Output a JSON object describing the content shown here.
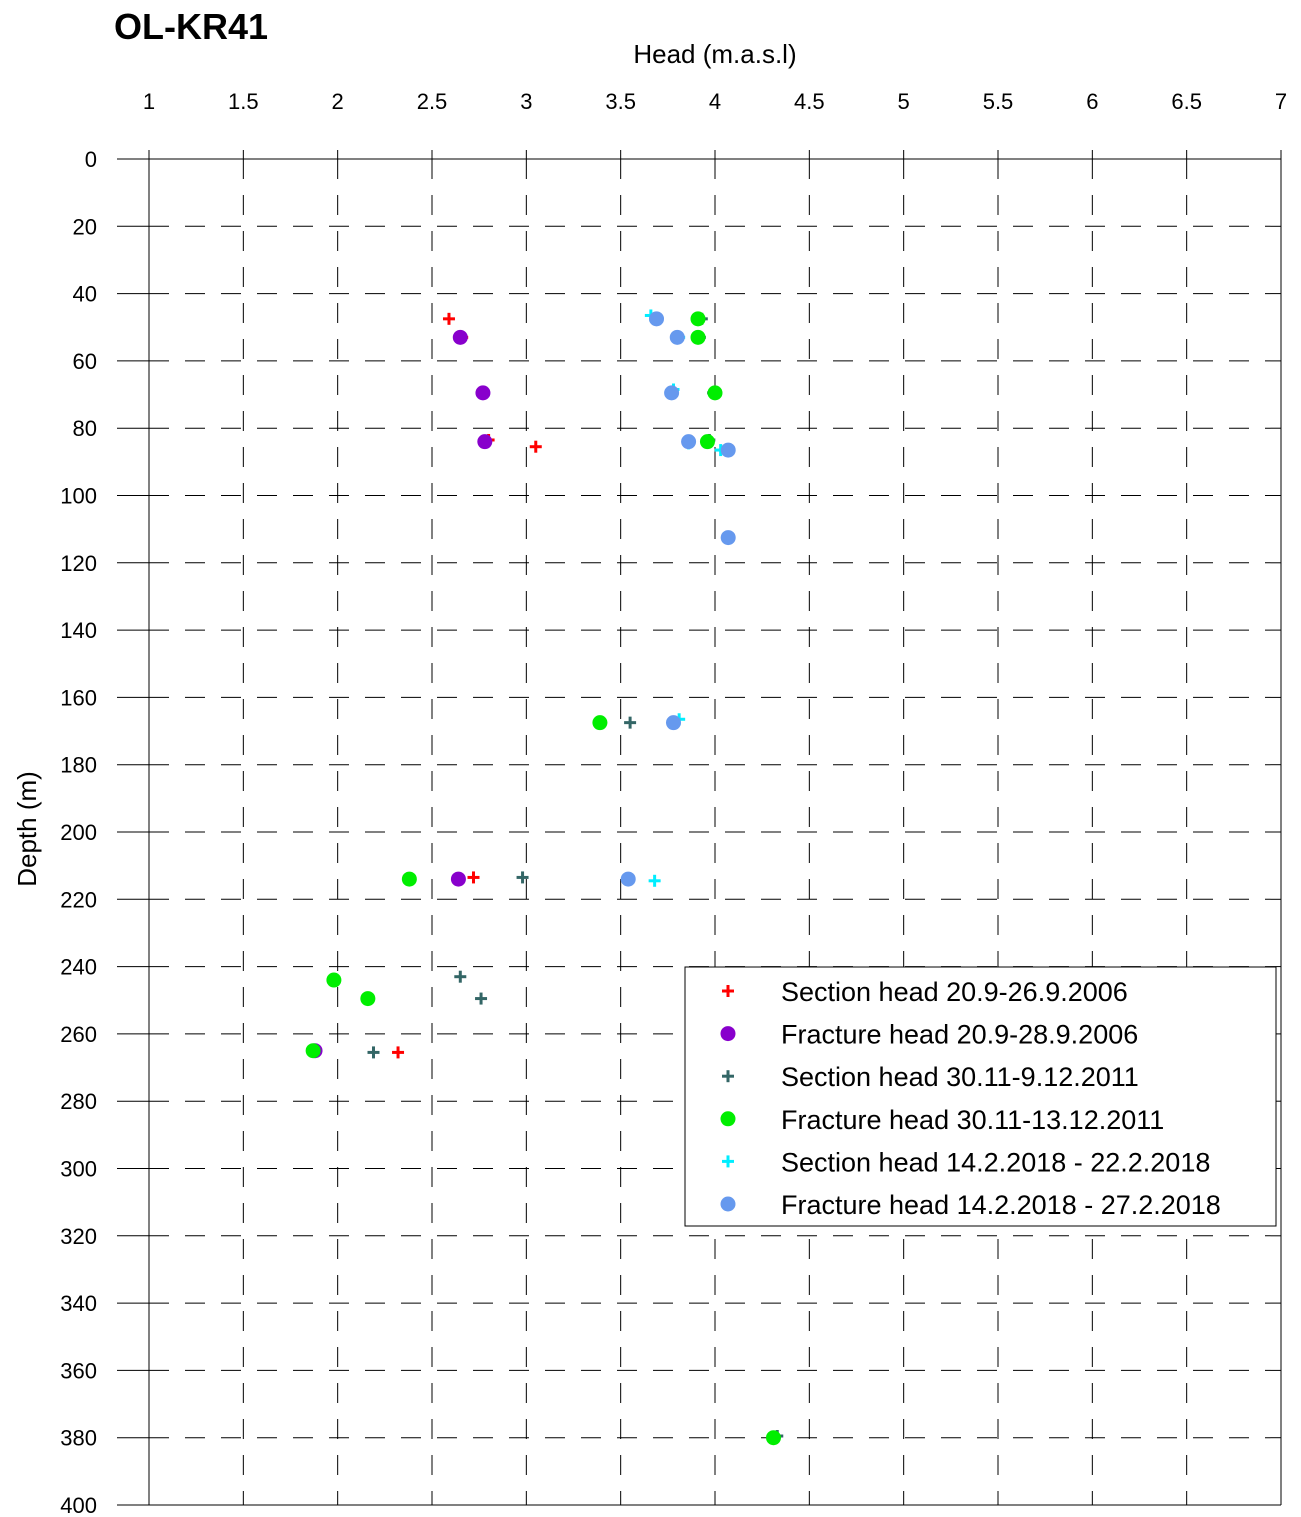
{
  "chart_data": {
    "type": "scatter",
    "title": "OL-KR41",
    "xlabel": "Head (m.a.s.l)",
    "ylabel": "Depth (m)",
    "xlim": [
      1,
      7
    ],
    "ylim": [
      0,
      400
    ],
    "y_inverted": true,
    "x_axis_position": "top",
    "grid": "dashed",
    "x_ticks": [
      "1",
      "1.5",
      "2",
      "2.5",
      "3",
      "3.5",
      "4",
      "4.5",
      "5",
      "5.5",
      "6",
      "6.5",
      "7"
    ],
    "y_ticks": [
      "0",
      "20",
      "40",
      "60",
      "80",
      "100",
      "120",
      "140",
      "160",
      "180",
      "200",
      "220",
      "240",
      "260",
      "280",
      "300",
      "320",
      "340",
      "360",
      "380",
      "400"
    ],
    "legend_position": "right",
    "series": [
      {
        "name": "Section head 20.9-26.9.2006",
        "marker": "plus",
        "color": "#ff0000",
        "points": [
          [
            2.59,
            47.5
          ],
          [
            2.66,
            53
          ],
          [
            2.77,
            69.5
          ],
          [
            2.8,
            83.5
          ],
          [
            3.05,
            85.5
          ],
          [
            2.72,
            213.5
          ],
          [
            2.32,
            265.5
          ]
        ]
      },
      {
        "name": "Fracture head 20.9-28.9.2006",
        "marker": "circle",
        "color": "#8800cc",
        "points": [
          [
            2.65,
            53
          ],
          [
            2.77,
            69.5
          ],
          [
            2.78,
            84
          ],
          [
            2.64,
            214
          ],
          [
            1.88,
            265
          ]
        ]
      },
      {
        "name": "Section head 30.11-9.12.2011",
        "marker": "plus",
        "color": "#336666",
        "points": [
          [
            3.93,
            47.5
          ],
          [
            3.92,
            53
          ],
          [
            3.99,
            69.5
          ],
          [
            3.97,
            83.5
          ],
          [
            3.55,
            167.5
          ],
          [
            2.98,
            213.5
          ],
          [
            2.65,
            243
          ],
          [
            2.76,
            249.5
          ],
          [
            2.19,
            265.5
          ],
          [
            4.33,
            379.5
          ]
        ]
      },
      {
        "name": "Fracture head 30.11-13.12.2011",
        "marker": "circle",
        "color": "#00ee00",
        "points": [
          [
            3.91,
            47.5
          ],
          [
            3.91,
            53
          ],
          [
            4.0,
            69.5
          ],
          [
            3.96,
            84
          ],
          [
            3.39,
            167.5
          ],
          [
            2.38,
            214
          ],
          [
            1.98,
            244
          ],
          [
            2.16,
            249.5
          ],
          [
            1.87,
            265
          ],
          [
            4.31,
            380
          ]
        ]
      },
      {
        "name": "Section head 14.2.2018 - 22.2.2018",
        "marker": "plus",
        "color": "#00eeff",
        "points": [
          [
            3.66,
            46.5
          ],
          [
            3.81,
            53
          ],
          [
            3.78,
            68.5
          ],
          [
            3.86,
            84.5
          ],
          [
            4.03,
            86.5
          ],
          [
            4.07,
            112.5
          ],
          [
            3.81,
            166.5
          ],
          [
            3.68,
            214.5
          ]
        ]
      },
      {
        "name": "Fracture head 14.2.2018 - 27.2.2018",
        "marker": "circle",
        "color": "#6699ee",
        "points": [
          [
            3.69,
            47.5
          ],
          [
            3.8,
            53
          ],
          [
            3.77,
            69.5
          ],
          [
            3.86,
            84
          ],
          [
            4.07,
            86.5
          ],
          [
            4.07,
            112.5
          ],
          [
            3.78,
            167.5
          ],
          [
            3.54,
            214
          ]
        ]
      }
    ]
  }
}
